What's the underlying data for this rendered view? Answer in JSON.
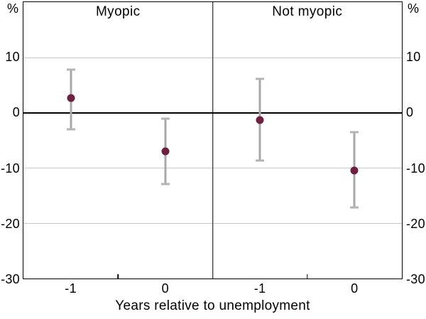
{
  "chart_data": {
    "type": "scatter",
    "subtype": "point-estimates-with-confidence-intervals",
    "xlabel": "Years relative to unemployment",
    "y_unit": "%",
    "ylim": [
      -30,
      20
    ],
    "yticks": [
      10,
      0,
      -10,
      -20,
      -30
    ],
    "gridlines": [
      10,
      -10,
      -20
    ],
    "zero_line_at": 0,
    "x_categories": [
      "-1",
      "0"
    ],
    "panels": [
      {
        "title": "Myopic",
        "points": [
          {
            "x": "-1",
            "y": 2.6,
            "ci_low": -3.0,
            "ci_high": 7.8
          },
          {
            "x": "0",
            "y": -7.0,
            "ci_low": -12.9,
            "ci_high": -1.1
          }
        ]
      },
      {
        "title": "Not myopic",
        "points": [
          {
            "x": "-1",
            "y": -1.3,
            "ci_low": -8.6,
            "ci_high": 6.1
          },
          {
            "x": "0",
            "y": -10.4,
            "ci_low": -17.2,
            "ci_high": -3.5
          }
        ]
      }
    ],
    "colors": {
      "point": "#6f1f3f",
      "error_bar": "#a8a8a8",
      "error_cap": "#b4b4b4",
      "gridline": "#c9c9c9",
      "axis": "#000000",
      "text": "#000000"
    }
  }
}
